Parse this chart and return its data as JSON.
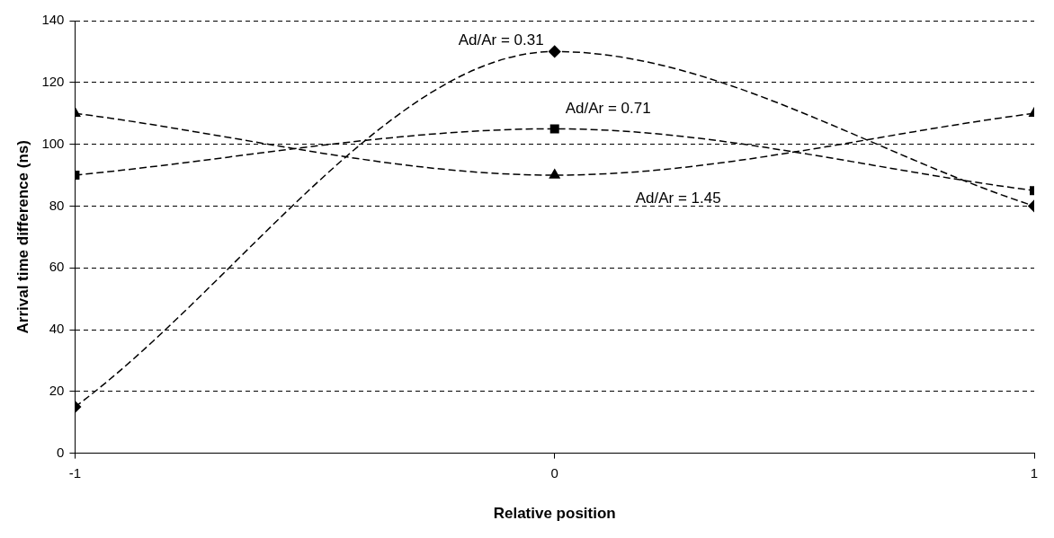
{
  "chart_data": {
    "type": "line",
    "xlabel": "Relative position",
    "ylabel": "Arrival time difference (ns)",
    "x": [
      -1,
      0,
      1
    ],
    "xlim": [
      -1,
      1
    ],
    "xticks": [
      -1,
      0,
      1
    ],
    "ylim": [
      0,
      140
    ],
    "yticks": [
      0,
      20,
      40,
      60,
      80,
      100,
      120,
      140
    ],
    "grid": "y",
    "legend": false,
    "line_style": "dashed",
    "series": [
      {
        "name": "Ad/Ar = 0.31",
        "color": "#000000",
        "marker": "diamond",
        "values": [
          15,
          130,
          80
        ]
      },
      {
        "name": "Ad/Ar = 0.71",
        "color": "#000000",
        "marker": "square",
        "values": [
          90,
          105,
          85
        ]
      },
      {
        "name": "Ad/Ar = 1.45",
        "color": "#000000",
        "marker": "triangle",
        "values": [
          110,
          90,
          110
        ]
      }
    ]
  }
}
